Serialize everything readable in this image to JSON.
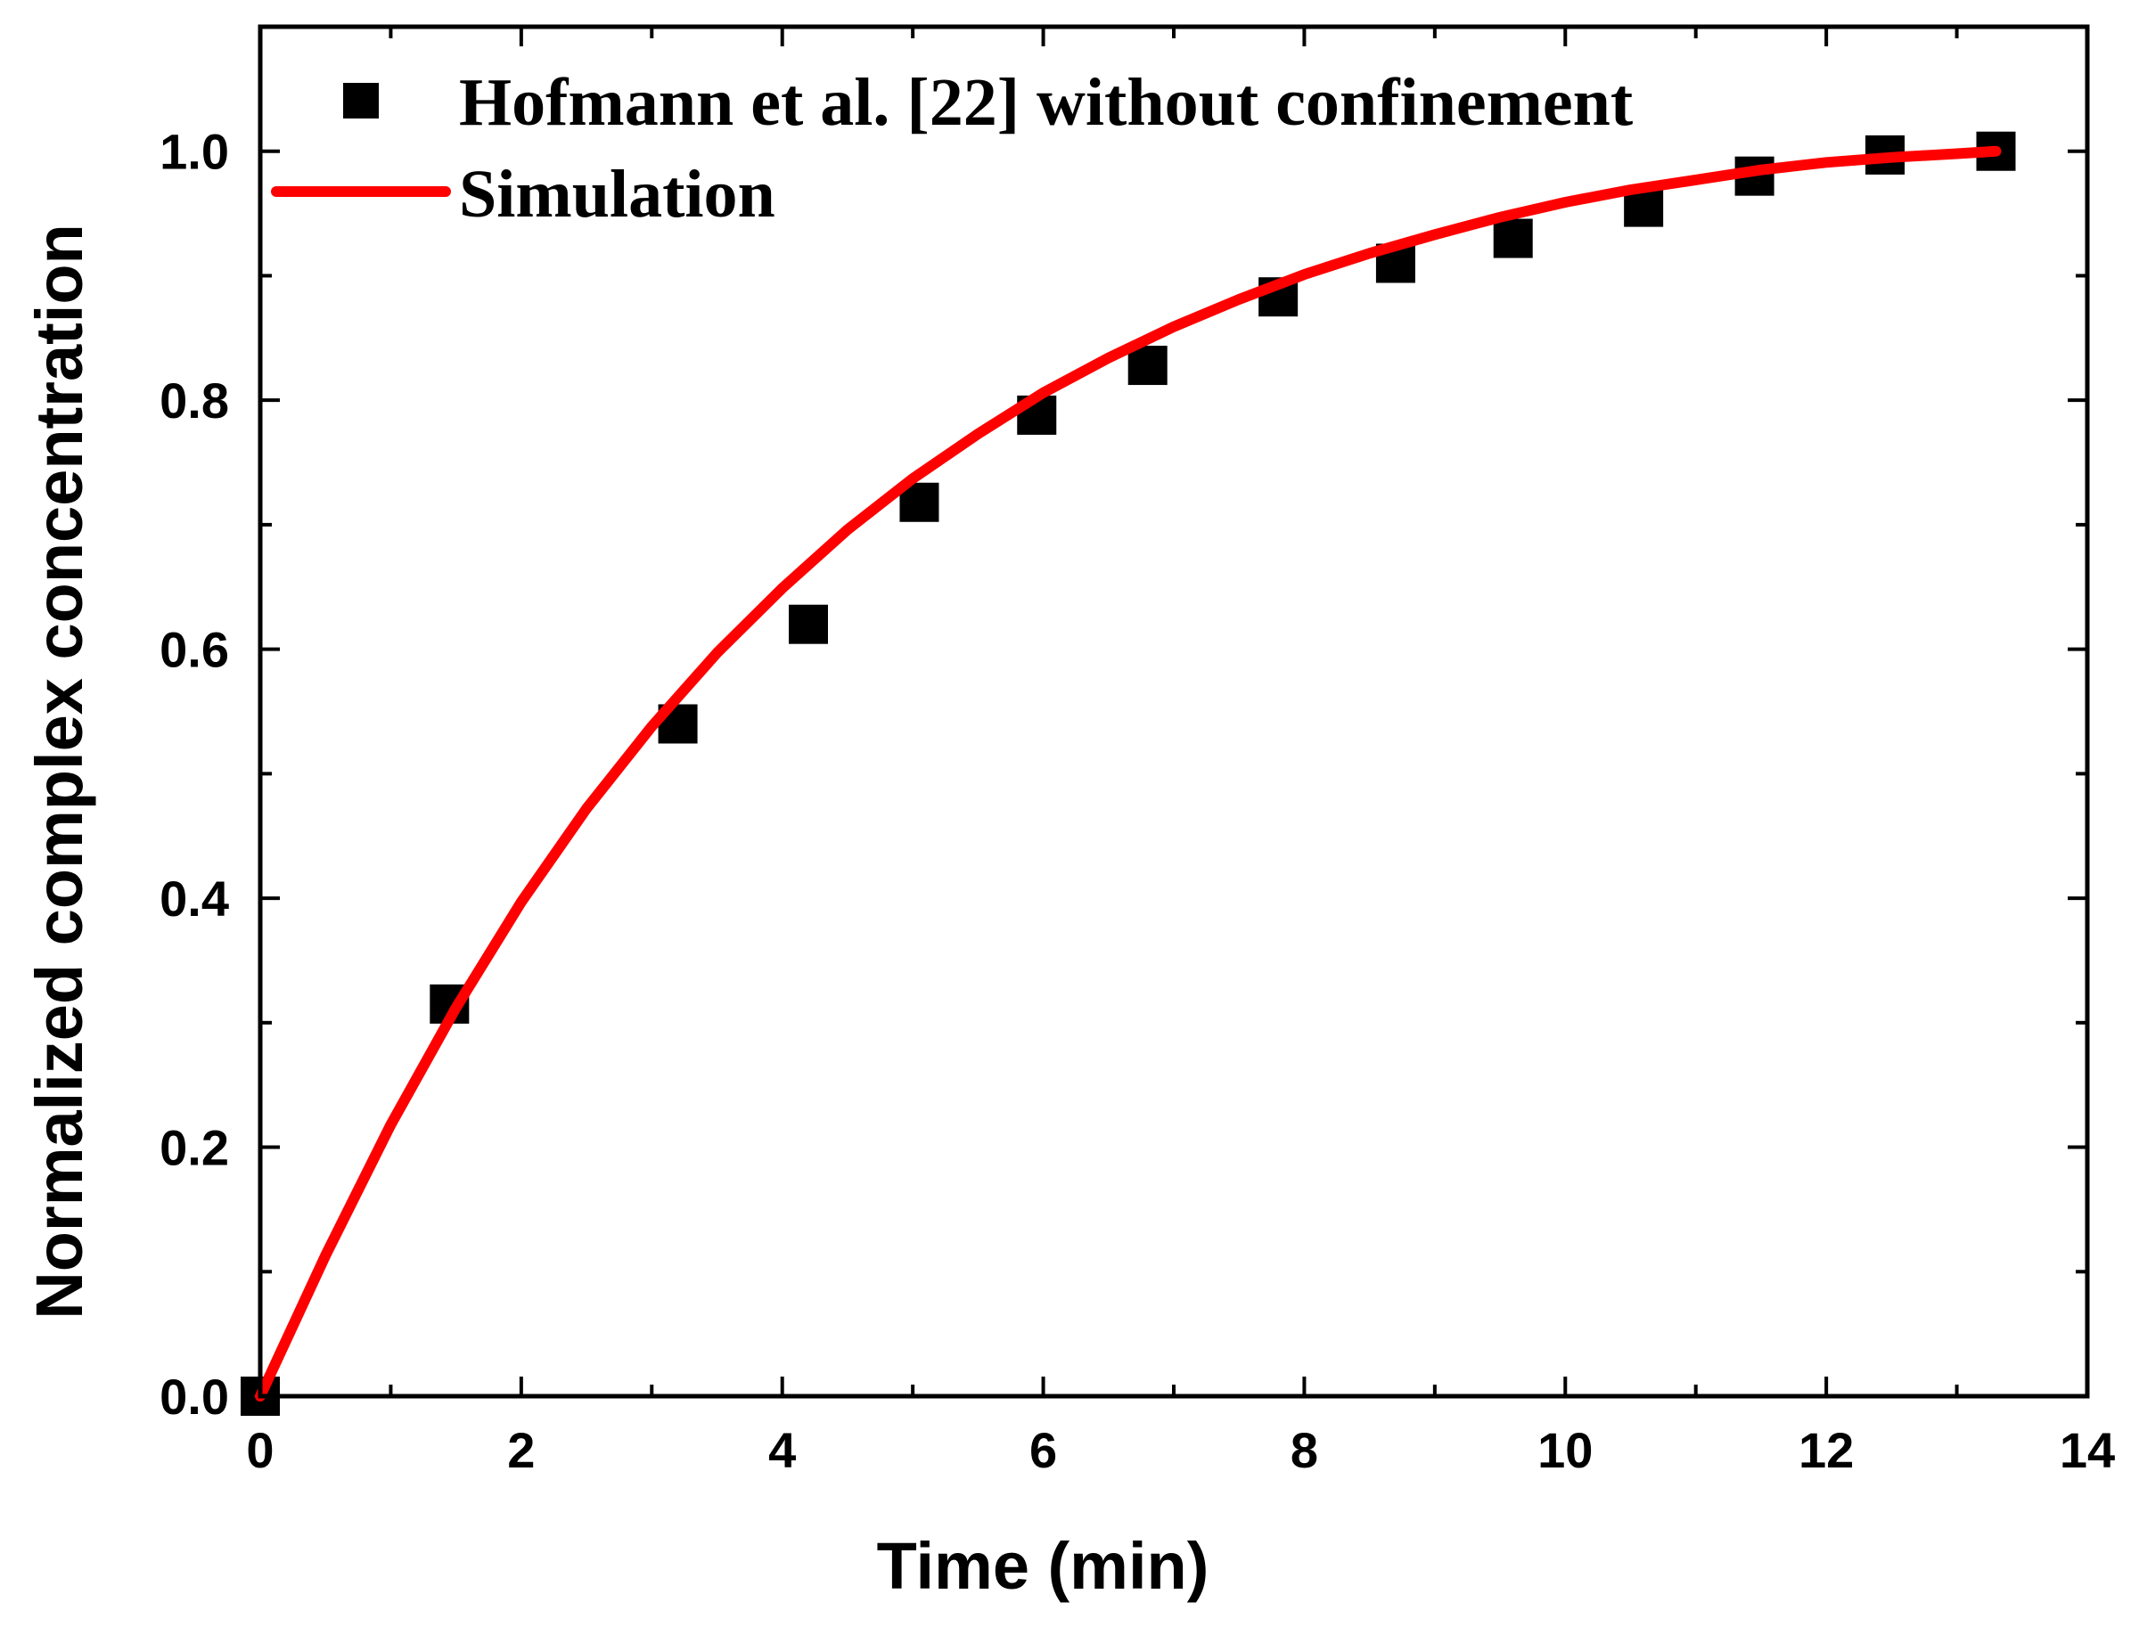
{
  "chart_data": {
    "type": "scatter",
    "xlabel": "Time (min)",
    "ylabel": "Normalized complex concentration",
    "xlim": [
      0,
      14
    ],
    "ylim": [
      0,
      1.1
    ],
    "x_ticks": [
      0,
      2,
      4,
      6,
      8,
      10,
      12,
      14
    ],
    "y_ticks": [
      0.0,
      0.2,
      0.4,
      0.6,
      0.8,
      1.0
    ],
    "x_tick_labels": [
      "0",
      "2",
      "4",
      "6",
      "8",
      "10",
      "12",
      "14"
    ],
    "y_tick_labels": [
      "0.0",
      "0.2",
      "0.4",
      "0.6",
      "0.8",
      "1.0"
    ],
    "grid": false,
    "legend_position": "top-left",
    "series": [
      {
        "name": "Hofmann et al. [22] without confinement",
        "type": "scatter",
        "marker": "square",
        "color": "#000000",
        "x": [
          0.0,
          1.45,
          3.2,
          4.2,
          5.05,
          5.95,
          6.8,
          7.8,
          8.7,
          9.6,
          10.6,
          11.45,
          12.45,
          13.3
        ],
        "y": [
          0.0,
          0.315,
          0.54,
          0.62,
          0.718,
          0.788,
          0.828,
          0.883,
          0.91,
          0.93,
          0.955,
          0.98,
          0.997,
          1.0
        ]
      },
      {
        "name": "Simulation",
        "type": "line",
        "color": "#ff0000",
        "x": [
          0.0,
          0.5,
          1.0,
          1.5,
          2.0,
          2.5,
          3.0,
          3.5,
          4.0,
          4.5,
          5.0,
          5.5,
          6.0,
          6.5,
          7.0,
          7.5,
          8.0,
          8.5,
          9.0,
          9.5,
          10.0,
          10.5,
          11.0,
          11.5,
          12.0,
          12.5,
          13.0,
          13.3
        ],
        "y": [
          0.0,
          0.113,
          0.218,
          0.312,
          0.397,
          0.472,
          0.538,
          0.597,
          0.649,
          0.696,
          0.737,
          0.773,
          0.806,
          0.834,
          0.859,
          0.881,
          0.901,
          0.918,
          0.933,
          0.947,
          0.959,
          0.969,
          0.977,
          0.985,
          0.991,
          0.995,
          0.998,
          1.0
        ]
      }
    ]
  }
}
